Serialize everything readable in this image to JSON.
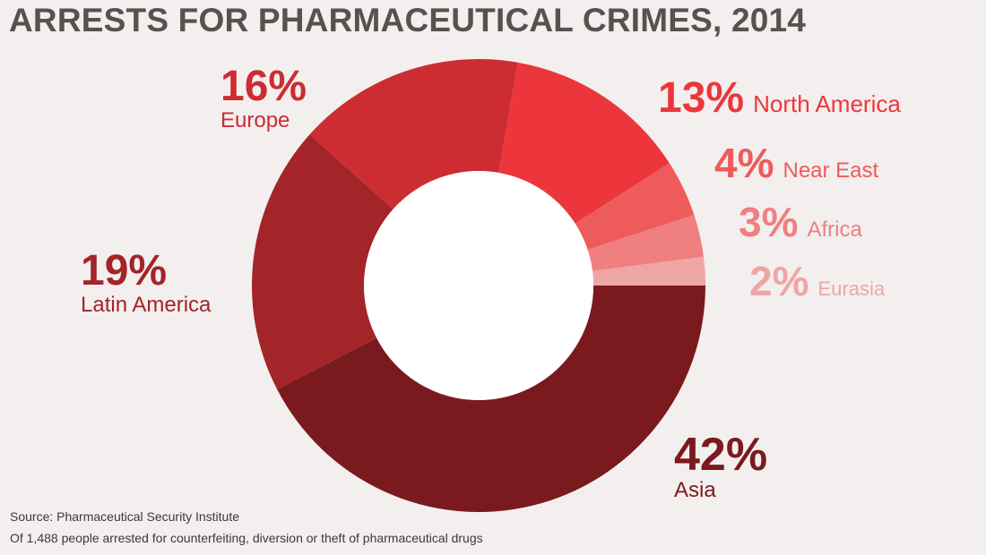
{
  "chart_data": {
    "type": "pie",
    "variant": "donut",
    "title": "ARRESTS FOR PHARMACEUTICAL CRIMES, 2014",
    "slices": [
      {
        "label": "Asia",
        "value": 42,
        "value_label": "42%",
        "color": "#7a1a1e"
      },
      {
        "label": "Latin America",
        "value": 19,
        "value_label": "19%",
        "color": "#a32429"
      },
      {
        "label": "Europe",
        "value": 16,
        "value_label": "16%",
        "color": "#cc2c32"
      },
      {
        "label": "North America",
        "value": 13,
        "value_label": "13%",
        "color": "#ed363c"
      },
      {
        "label": "Near East",
        "value": 4,
        "value_label": "4%",
        "color": "#ee5b5d"
      },
      {
        "label": "Africa",
        "value": 3,
        "value_label": "3%",
        "color": "#f07f80"
      },
      {
        "label": "Eurasia",
        "value": 2,
        "value_label": "2%",
        "color": "#eea6a5"
      }
    ]
  },
  "footer": {
    "source": "Source: Pharmaceutical Security Institute",
    "note": "Of 1,488 people arrested for counterfeiting, diversion or theft of pharmaceutical drugs"
  }
}
